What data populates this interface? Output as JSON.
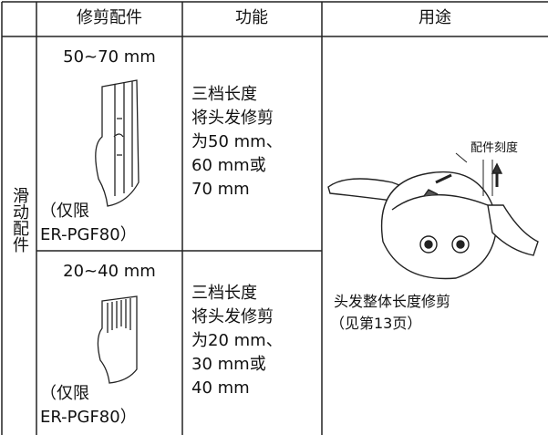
{
  "table": {
    "header": [
      "修剪配件",
      "功能",
      "用途"
    ],
    "group": "滑动配件",
    "rows": [
      {
        "size": "50~70 mm",
        "note": [
          "（仅限",
          "ER-PGF80）"
        ],
        "function": [
          "三档长度",
          "将头发修剪",
          "为50 mm、",
          "60 mm或",
          "70 mm"
        ]
      },
      {
        "size": "20~40 mm",
        "note": [
          "（仅限",
          "ER-PGF80）"
        ],
        "function": [
          "三档长度",
          "将头发修剪",
          "为20 mm、",
          "30 mm或",
          "40 mm"
        ]
      }
    ],
    "usage": {
      "label": "配件刻度",
      "caption": [
        "头发整体长度修剪",
        "（见第13页）"
      ]
    }
  }
}
